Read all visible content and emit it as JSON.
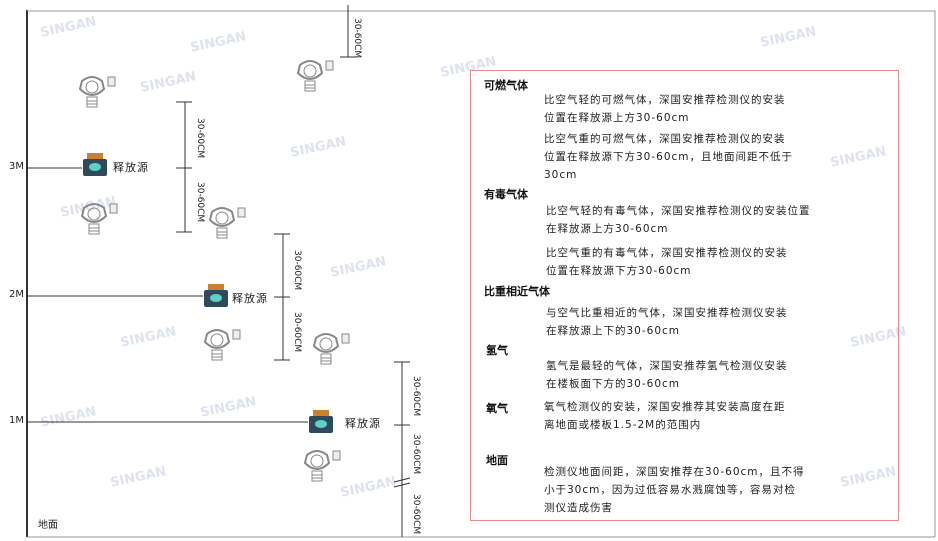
{
  "levels": {
    "m3": "3M",
    "m2": "2M",
    "m1": "1M",
    "ground": "地面"
  },
  "source_label": "释放源",
  "dimension_label": "30-60CM",
  "watermark": "SINGAN 深国安",
  "info": {
    "combustible": {
      "title": "可燃气体",
      "p1": [
        "比空气轻的可燃气体，深国安推荐检测仪的安装",
        "位置在释放源上方30-60cm"
      ],
      "p2": [
        "比空气重的可燃气体，深国安推荐检测仪的安装",
        "位置在释放源下方30-60cm，且地面间距不低于",
        "30cm"
      ]
    },
    "toxic": {
      "title": "有毒气体",
      "p1": [
        "比空气轻的有毒气体，深国安推荐检测仪的安装位置",
        "在释放源上方30-60cm"
      ],
      "p2": [
        "比空气重的有毒气体，深国安推荐检测仪的安装",
        "位置在释放源下方30-60cm"
      ]
    },
    "similar": {
      "title": "比重相近气体",
      "p1": [
        "与空气比重相近的气体，深国安推荐检测仪安装",
        "在释放源上下的30-60cm"
      ]
    },
    "hydrogen": {
      "title": "氢气",
      "p1": [
        "氢气是最轻的气体，深国安推荐氢气检测仪安装",
        "在楼板面下方的30-60cm"
      ]
    },
    "oxygen": {
      "title": "氧气",
      "p1": [
        "氧气检测仪的安装，深国安推荐其安装高度在距",
        "离地面或楼板1.5-2M的范围内"
      ]
    },
    "ground": {
      "title": "地面",
      "p1": [
        "检测仪地面间距，深国安推荐在30-60cm，且不得",
        "小于30cm，因为过低容易水溅腐蚀等，容易对检",
        "测仪造成伤害"
      ]
    }
  },
  "colors": {
    "box_border": "#e88a90",
    "source_body": "#2f4a5a",
    "source_accent": "#5fd0c8",
    "source_cap": "#c9802f"
  }
}
